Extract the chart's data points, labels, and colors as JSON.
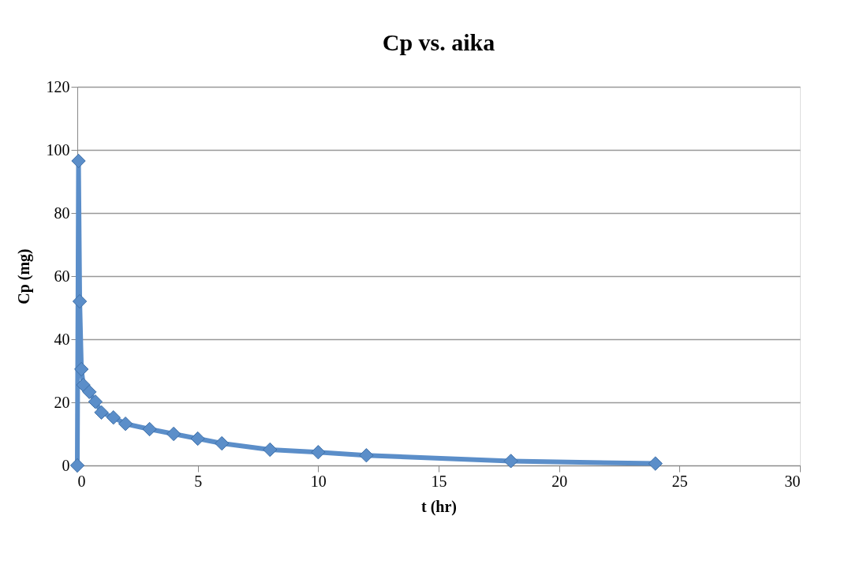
{
  "chart_data": {
    "type": "line",
    "title": "Cp vs. aika",
    "xlabel": "t (hr)",
    "ylabel": "Cp  (mg)",
    "x": [
      0,
      0.05,
      0.1,
      0.17,
      0.25,
      0.5,
      0.75,
      1,
      1.5,
      2,
      3,
      4,
      5,
      6,
      8,
      10,
      12,
      18,
      24
    ],
    "series": [
      {
        "color": "#5b8ec9",
        "values": [
          0,
          96.5,
          52,
          30.5,
          25.5,
          23.3,
          20.2,
          16.8,
          15.2,
          13.2,
          11.5,
          10,
          8.5,
          7,
          5,
          4.2,
          3.2,
          1.4,
          0.6
        ]
      }
    ],
    "xlim": [
      0,
      30
    ],
    "xticks": [
      0,
      5,
      10,
      15,
      20,
      25,
      30
    ],
    "ylim": [
      0,
      120
    ],
    "yticks": [
      0,
      20,
      40,
      60,
      80,
      100,
      120
    ],
    "grid": "y",
    "marker": "diamond",
    "line_style": "solid"
  }
}
